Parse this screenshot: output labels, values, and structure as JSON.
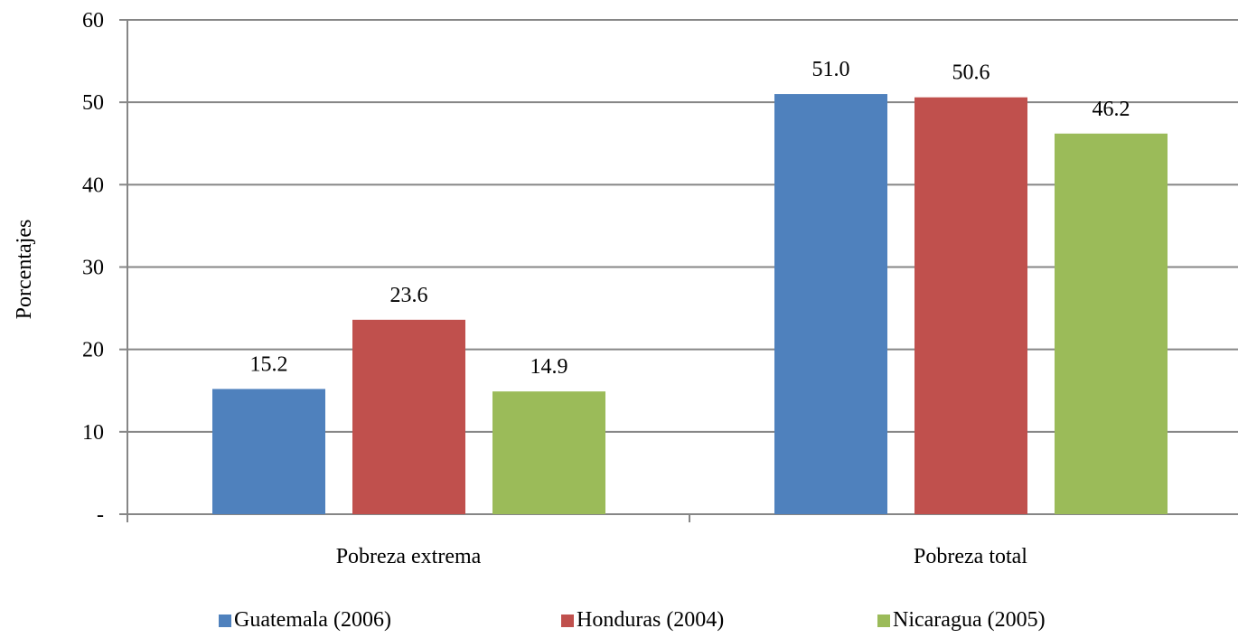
{
  "chart_data": {
    "type": "bar",
    "categories": [
      "Pobreza extrema",
      "Pobreza total"
    ],
    "series": [
      {
        "name": "Guatemala (2006)",
        "values": [
          15.2,
          51.0
        ],
        "labels": [
          "15.2",
          "51.0"
        ],
        "color": "#4F81BD"
      },
      {
        "name": "Honduras (2004)",
        "values": [
          23.6,
          50.6
        ],
        "labels": [
          "23.6",
          "50.6"
        ],
        "color": "#C0504D"
      },
      {
        "name": "Nicaragua (2005)",
        "values": [
          14.9,
          46.2
        ],
        "labels": [
          "14.9",
          "46.2"
        ],
        "color": "#9BBB59"
      }
    ],
    "title": "",
    "xlabel": "",
    "ylabel": "Porcentajes",
    "ylim": [
      0,
      60
    ],
    "yticks": [
      0,
      10,
      20,
      30,
      40,
      50,
      60
    ],
    "ytick_labels": [
      "-",
      "10",
      "20",
      "30",
      "40",
      "50",
      "60"
    ],
    "grid": true,
    "legend_position": "bottom"
  },
  "colors": {
    "grid": "#868686",
    "axis": "#868686",
    "background": "#FFFFFF"
  }
}
